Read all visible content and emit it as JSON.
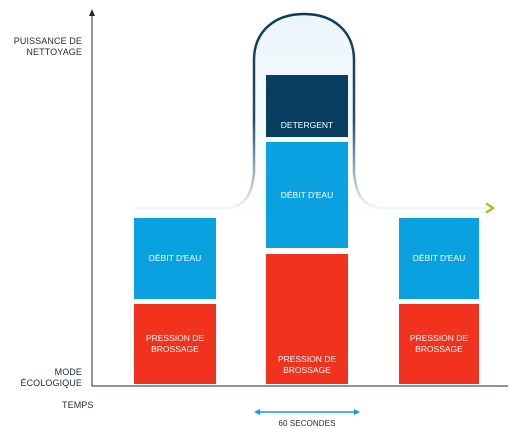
{
  "y_axis": {
    "top_label": "PUISSANCE DE\nNETTOYAGE",
    "bottom_label": "MODE\nÉCOLOGIQUE"
  },
  "x_axis": {
    "label": "TEMPS"
  },
  "duration": {
    "label": "60 SECONDES"
  },
  "columns": [
    {
      "water_label": "DÉBIT D'EAU",
      "brush_label": "PRESSION DE\nBROSSAGE"
    },
    {
      "detergent_label": "DETERGENT",
      "water_label": "DÉBIT D'EAU",
      "brush_label": "PRESSION DE\nBROSSAGE"
    },
    {
      "water_label": "DÉBIT D'EAU",
      "brush_label": "PRESSION DE\nBROSSAGE"
    }
  ],
  "colors": {
    "water": "#0aa1e0",
    "brush": "#f0321e",
    "detergent": "#063d60",
    "curve": "#0b3a5e",
    "arrow_accent": "#a8c020",
    "axis": "#1b2a3a"
  }
}
